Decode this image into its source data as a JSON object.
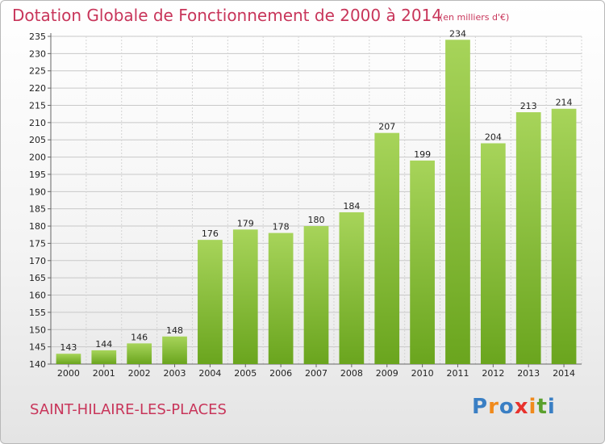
{
  "title": "Dotation Globale de Fonctionnement de 2000 à 2014",
  "subtitle": "(en milliers d'€)",
  "place": "SAINT-HILAIRE-LES-PLACES",
  "logo": {
    "letters": [
      "P",
      "r",
      "o",
      "x",
      "i",
      "t",
      "i"
    ],
    "colors": [
      "#3a7fc4",
      "#f08a1c",
      "#3a7fc4",
      "#e8322d",
      "#f08a1c",
      "#5aa02c",
      "#3a7fc4"
    ]
  },
  "colors": {
    "bar_light": "#a7d45a",
    "bar_dark": "#6aa51e",
    "title": "#c8355a"
  },
  "chart_data": {
    "type": "bar",
    "categories": [
      "2000",
      "2001",
      "2002",
      "2003",
      "2004",
      "2005",
      "2006",
      "2007",
      "2008",
      "2009",
      "2010",
      "2011",
      "2012",
      "2013",
      "2014"
    ],
    "values": [
      143,
      144,
      146,
      148,
      176,
      179,
      178,
      180,
      184,
      207,
      199,
      234,
      204,
      213,
      214
    ],
    "ylim": [
      140,
      235
    ],
    "yticks": [
      140,
      145,
      150,
      155,
      160,
      165,
      170,
      175,
      180,
      185,
      190,
      195,
      200,
      205,
      210,
      215,
      220,
      225,
      230,
      235
    ],
    "grid": true,
    "data_labels": true
  }
}
